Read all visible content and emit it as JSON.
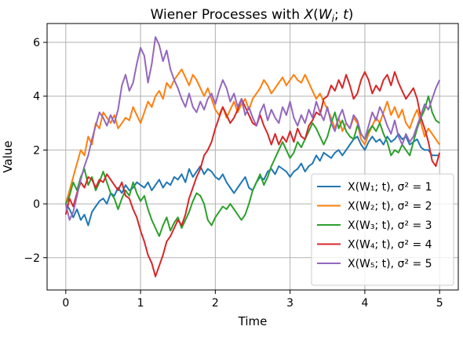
{
  "chart_data": {
    "type": "line",
    "title": "Wiener Processes with X(W_i; t)",
    "xlabel": "Time",
    "ylabel": "Value",
    "xlim": [
      -0.25,
      5.25
    ],
    "ylim": [
      -3.2,
      6.7
    ],
    "x_ticks": [
      "0",
      "1",
      "2",
      "3",
      "4",
      "5"
    ],
    "y_ticks": [
      "−2",
      "0",
      "2",
      "4",
      "6"
    ],
    "grid": true,
    "legend_position": "lower right",
    "series": [
      {
        "name": "X(W₁; t), σ² = 1",
        "color": "#1f77b4",
        "x": [
          0,
          0.05,
          0.1,
          0.15,
          0.2,
          0.25,
          0.3,
          0.35,
          0.4,
          0.45,
          0.5,
          0.55,
          0.6,
          0.65,
          0.7,
          0.75,
          0.8,
          0.85,
          0.9,
          0.95,
          1.0,
          1.05,
          1.1,
          1.15,
          1.2,
          1.25,
          1.3,
          1.35,
          1.4,
          1.45,
          1.5,
          1.55,
          1.6,
          1.65,
          1.7,
          1.75,
          1.8,
          1.85,
          1.9,
          1.95,
          2.0,
          2.05,
          2.1,
          2.15,
          2.2,
          2.25,
          2.3,
          2.35,
          2.4,
          2.45,
          2.5,
          2.55,
          2.6,
          2.65,
          2.7,
          2.75,
          2.8,
          2.85,
          2.9,
          2.95,
          3.0,
          3.05,
          3.1,
          3.15,
          3.2,
          3.25,
          3.3,
          3.35,
          3.4,
          3.45,
          3.5,
          3.55,
          3.6,
          3.65,
          3.7,
          3.75,
          3.8,
          3.85,
          3.9,
          3.95,
          4.0,
          4.05,
          4.1,
          4.15,
          4.2,
          4.25,
          4.3,
          4.35,
          4.4,
          4.45,
          4.5,
          4.55,
          4.6,
          4.65,
          4.7,
          4.75,
          4.8,
          4.85,
          4.9,
          4.95,
          5.0
        ],
        "y": [
          0.0,
          -0.2,
          -0.5,
          -0.2,
          -0.6,
          -0.4,
          -0.8,
          -0.3,
          -0.1,
          0.1,
          0.2,
          0.0,
          0.4,
          0.3,
          0.6,
          0.4,
          0.7,
          0.5,
          0.6,
          0.8,
          0.7,
          0.6,
          0.8,
          0.5,
          0.7,
          0.9,
          0.6,
          0.8,
          0.7,
          1.0,
          0.9,
          1.1,
          0.8,
          1.3,
          1.0,
          1.2,
          1.4,
          1.1,
          1.3,
          1.2,
          1.0,
          0.9,
          1.1,
          0.8,
          0.6,
          0.4,
          0.6,
          0.8,
          1.0,
          0.6,
          0.5,
          0.8,
          1.0,
          0.9,
          1.2,
          1.3,
          1.1,
          1.4,
          1.3,
          1.2,
          1.0,
          1.2,
          1.3,
          1.5,
          1.2,
          1.4,
          1.5,
          1.8,
          1.6,
          1.9,
          1.8,
          1.7,
          1.9,
          2.0,
          1.8,
          2.0,
          2.2,
          2.4,
          2.5,
          2.2,
          2.0,
          2.3,
          2.5,
          2.3,
          2.4,
          2.2,
          2.5,
          2.3,
          2.4,
          2.6,
          2.4,
          2.5,
          2.2,
          2.3,
          2.4,
          2.1,
          2.0,
          2.0,
          1.8,
          1.8,
          1.8
        ]
      },
      {
        "name": "X(W₂; t), σ² = 2",
        "color": "#ff7f0e",
        "x": [
          0,
          0.05,
          0.1,
          0.15,
          0.2,
          0.25,
          0.3,
          0.35,
          0.4,
          0.45,
          0.5,
          0.55,
          0.6,
          0.65,
          0.7,
          0.75,
          0.8,
          0.85,
          0.9,
          0.95,
          1.0,
          1.05,
          1.1,
          1.15,
          1.2,
          1.25,
          1.3,
          1.35,
          1.4,
          1.45,
          1.5,
          1.55,
          1.6,
          1.65,
          1.7,
          1.75,
          1.8,
          1.85,
          1.9,
          1.95,
          2.0,
          2.05,
          2.1,
          2.15,
          2.2,
          2.25,
          2.3,
          2.35,
          2.4,
          2.45,
          2.5,
          2.55,
          2.6,
          2.65,
          2.7,
          2.75,
          2.8,
          2.85,
          2.9,
          2.95,
          3.0,
          3.05,
          3.1,
          3.15,
          3.2,
          3.25,
          3.3,
          3.35,
          3.4,
          3.45,
          3.5,
          3.55,
          3.6,
          3.65,
          3.7,
          3.75,
          3.8,
          3.85,
          3.9,
          3.95,
          4.0,
          4.05,
          4.1,
          4.15,
          4.2,
          4.25,
          4.3,
          4.35,
          4.4,
          4.45,
          4.5,
          4.55,
          4.6,
          4.65,
          4.7,
          4.75,
          4.8,
          4.85,
          4.9,
          4.95,
          5.0
        ],
        "y": [
          0.0,
          0.5,
          1.0,
          1.5,
          2.0,
          1.8,
          2.5,
          2.2,
          3.0,
          2.8,
          3.4,
          3.2,
          3.0,
          3.3,
          2.8,
          3.0,
          3.2,
          3.1,
          3.6,
          3.3,
          3.0,
          3.4,
          3.8,
          3.6,
          4.0,
          4.2,
          3.9,
          4.5,
          4.3,
          4.6,
          4.8,
          5.0,
          4.7,
          4.4,
          4.8,
          4.6,
          4.3,
          4.0,
          4.3,
          3.9,
          3.5,
          3.3,
          3.6,
          3.2,
          3.5,
          3.8,
          3.4,
          3.7,
          3.9,
          3.5,
          3.9,
          4.1,
          4.3,
          4.6,
          4.4,
          4.1,
          4.3,
          4.5,
          4.7,
          4.4,
          4.6,
          4.8,
          4.6,
          4.5,
          4.8,
          4.5,
          4.2,
          3.9,
          4.1,
          3.8,
          3.5,
          3.2,
          2.8,
          3.2,
          2.7,
          3.0,
          2.8,
          3.2,
          3.0,
          2.4,
          2.2,
          2.6,
          2.9,
          3.2,
          3.0,
          3.4,
          3.8,
          3.3,
          3.6,
          3.2,
          3.5,
          3.0,
          2.8,
          3.2,
          3.5,
          3.0,
          2.5,
          2.8,
          2.6,
          2.4,
          2.2
        ]
      },
      {
        "name": "X(W₃; t), σ² = 3",
        "color": "#2ca02c",
        "x": [
          0,
          0.05,
          0.1,
          0.15,
          0.2,
          0.25,
          0.3,
          0.35,
          0.4,
          0.45,
          0.5,
          0.55,
          0.6,
          0.65,
          0.7,
          0.75,
          0.8,
          0.85,
          0.9,
          0.95,
          1.0,
          1.05,
          1.1,
          1.15,
          1.2,
          1.25,
          1.3,
          1.35,
          1.4,
          1.45,
          1.5,
          1.55,
          1.6,
          1.65,
          1.7,
          1.75,
          1.8,
          1.85,
          1.9,
          1.95,
          2.0,
          2.05,
          2.1,
          2.15,
          2.2,
          2.25,
          2.3,
          2.35,
          2.4,
          2.45,
          2.5,
          2.55,
          2.6,
          2.65,
          2.7,
          2.75,
          2.8,
          2.85,
          2.9,
          2.95,
          3.0,
          3.05,
          3.1,
          3.15,
          3.2,
          3.25,
          3.3,
          3.35,
          3.4,
          3.45,
          3.5,
          3.55,
          3.6,
          3.65,
          3.7,
          3.75,
          3.8,
          3.85,
          3.9,
          3.95,
          4.0,
          4.05,
          4.1,
          4.15,
          4.2,
          4.25,
          4.3,
          4.35,
          4.4,
          4.45,
          4.5,
          4.55,
          4.6,
          4.65,
          4.7,
          4.75,
          4.8,
          4.85,
          4.9,
          4.95,
          5.0
        ],
        "y": [
          0.0,
          0.3,
          0.8,
          0.5,
          1.0,
          1.3,
          0.7,
          1.0,
          0.5,
          0.8,
          1.2,
          0.8,
          0.4,
          0.2,
          -0.2,
          0.2,
          0.5,
          0.3,
          0.8,
          0.4,
          0.1,
          0.3,
          -0.2,
          -0.6,
          -0.9,
          -1.2,
          -0.8,
          -0.5,
          -1.0,
          -0.7,
          -0.5,
          -0.9,
          -0.6,
          -0.3,
          0.1,
          0.4,
          0.3,
          0.0,
          -0.6,
          -0.8,
          -0.5,
          -0.3,
          -0.1,
          -0.2,
          0.0,
          -0.2,
          -0.4,
          -0.6,
          -0.4,
          0.0,
          0.5,
          0.8,
          1.1,
          0.7,
          1.0,
          1.4,
          1.7,
          2.0,
          2.3,
          2.0,
          1.7,
          1.9,
          2.3,
          2.1,
          2.4,
          2.7,
          3.0,
          2.8,
          2.5,
          2.2,
          2.5,
          3.0,
          3.4,
          2.8,
          3.1,
          2.7,
          2.5,
          2.4,
          2.9,
          2.6,
          2.4,
          2.7,
          2.9,
          2.7,
          3.0,
          2.6,
          2.3,
          1.8,
          2.0,
          1.9,
          2.2,
          2.0,
          1.8,
          2.3,
          2.8,
          3.2,
          3.5,
          4.0,
          3.4,
          3.1,
          3.0
        ]
      },
      {
        "name": "X(W₄; t), σ² = 4",
        "color": "#d62728",
        "x": [
          0,
          0.05,
          0.1,
          0.15,
          0.2,
          0.25,
          0.3,
          0.35,
          0.4,
          0.45,
          0.5,
          0.55,
          0.6,
          0.65,
          0.7,
          0.75,
          0.8,
          0.85,
          0.9,
          0.95,
          1.0,
          1.05,
          1.1,
          1.15,
          1.2,
          1.25,
          1.3,
          1.35,
          1.4,
          1.45,
          1.5,
          1.55,
          1.6,
          1.65,
          1.7,
          1.75,
          1.8,
          1.85,
          1.9,
          1.95,
          2.0,
          2.05,
          2.1,
          2.15,
          2.2,
          2.25,
          2.3,
          2.35,
          2.4,
          2.45,
          2.5,
          2.55,
          2.6,
          2.65,
          2.7,
          2.75,
          2.8,
          2.85,
          2.9,
          2.95,
          3.0,
          3.05,
          3.1,
          3.15,
          3.2,
          3.25,
          3.3,
          3.35,
          3.4,
          3.45,
          3.5,
          3.55,
          3.6,
          3.65,
          3.7,
          3.75,
          3.8,
          3.85,
          3.9,
          3.95,
          4.0,
          4.05,
          4.1,
          4.15,
          4.2,
          4.25,
          4.3,
          4.35,
          4.4,
          4.45,
          4.5,
          4.55,
          4.6,
          4.65,
          4.7,
          4.75,
          4.8,
          4.85,
          4.9,
          4.95,
          5.0
        ],
        "y": [
          -0.4,
          0.2,
          -0.1,
          0.4,
          0.8,
          0.6,
          1.0,
          0.9,
          0.6,
          0.9,
          0.8,
          1.1,
          0.9,
          0.7,
          0.5,
          0.8,
          0.3,
          0.2,
          -0.2,
          -0.5,
          -1.0,
          -1.4,
          -1.9,
          -2.2,
          -2.7,
          -2.3,
          -1.9,
          -1.4,
          -1.2,
          -0.9,
          -0.6,
          -0.8,
          -0.4,
          0.2,
          0.6,
          1.0,
          1.3,
          1.8,
          2.0,
          2.3,
          2.8,
          3.2,
          3.6,
          3.3,
          3.0,
          3.2,
          3.5,
          3.9,
          3.6,
          3.3,
          3.0,
          2.9,
          3.3,
          2.9,
          2.6,
          2.2,
          2.6,
          2.2,
          2.5,
          2.3,
          2.7,
          2.3,
          2.8,
          2.5,
          2.4,
          2.9,
          3.1,
          3.4,
          3.3,
          3.9,
          4.0,
          4.4,
          4.2,
          4.6,
          4.3,
          4.8,
          4.4,
          3.9,
          4.1,
          4.6,
          4.9,
          4.6,
          4.1,
          4.4,
          4.2,
          4.6,
          4.8,
          4.4,
          4.9,
          4.5,
          4.2,
          3.9,
          4.1,
          4.3,
          3.9,
          3.2,
          2.8,
          2.3,
          1.6,
          1.4,
          1.9
        ]
      },
      {
        "name": "X(W₅; t), σ² = 5",
        "color": "#9467bd",
        "x": [
          0,
          0.05,
          0.1,
          0.15,
          0.2,
          0.25,
          0.3,
          0.35,
          0.4,
          0.45,
          0.5,
          0.55,
          0.6,
          0.65,
          0.7,
          0.75,
          0.8,
          0.85,
          0.9,
          0.95,
          1.0,
          1.05,
          1.1,
          1.15,
          1.2,
          1.25,
          1.3,
          1.35,
          1.4,
          1.45,
          1.5,
          1.55,
          1.6,
          1.65,
          1.7,
          1.75,
          1.8,
          1.85,
          1.9,
          1.95,
          2.0,
          2.05,
          2.1,
          2.15,
          2.2,
          2.25,
          2.3,
          2.35,
          2.4,
          2.45,
          2.5,
          2.55,
          2.6,
          2.65,
          2.7,
          2.75,
          2.8,
          2.85,
          2.9,
          2.95,
          3.0,
          3.05,
          3.1,
          3.15,
          3.2,
          3.25,
          3.3,
          3.35,
          3.4,
          3.45,
          3.5,
          3.55,
          3.6,
          3.65,
          3.7,
          3.75,
          3.8,
          3.85,
          3.9,
          3.95,
          4.0,
          4.05,
          4.1,
          4.15,
          4.2,
          4.25,
          4.3,
          4.35,
          4.4,
          4.45,
          4.5,
          4.55,
          4.6,
          4.65,
          4.7,
          4.75,
          4.8,
          4.85,
          4.9,
          4.95,
          5.0
        ],
        "y": [
          0.0,
          -0.6,
          -0.3,
          0.3,
          0.9,
          1.4,
          1.8,
          2.4,
          2.9,
          3.4,
          3.2,
          2.9,
          3.3,
          3.0,
          3.5,
          4.4,
          4.8,
          4.2,
          4.5,
          5.2,
          5.8,
          5.5,
          4.5,
          5.2,
          6.2,
          5.9,
          5.3,
          5.7,
          5.0,
          4.6,
          4.3,
          3.9,
          3.6,
          4.1,
          3.6,
          3.4,
          3.8,
          3.5,
          3.9,
          4.1,
          3.7,
          4.2,
          4.6,
          4.3,
          3.8,
          4.1,
          3.6,
          3.9,
          3.3,
          3.6,
          3.2,
          2.9,
          3.4,
          3.7,
          3.1,
          3.5,
          3.2,
          3.0,
          3.6,
          3.3,
          3.8,
          3.2,
          2.9,
          3.3,
          3.0,
          3.5,
          3.2,
          3.8,
          3.4,
          3.1,
          3.6,
          3.0,
          2.7,
          3.2,
          3.5,
          3.0,
          2.8,
          3.3,
          3.1,
          2.6,
          2.4,
          2.9,
          3.4,
          3.1,
          3.6,
          3.3,
          2.9,
          2.6,
          3.1,
          2.5,
          2.2,
          2.6,
          2.3,
          2.5,
          2.9,
          3.3,
          3.7,
          3.5,
          3.9,
          4.3,
          4.6
        ]
      }
    ]
  }
}
